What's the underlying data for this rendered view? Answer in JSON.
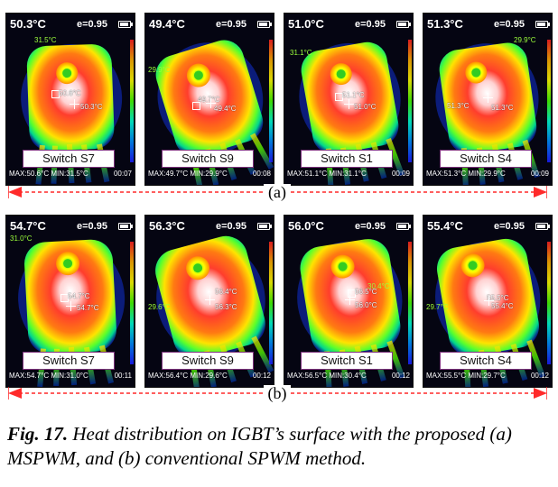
{
  "rows": [
    {
      "label": "(a)",
      "panels": [
        {
          "max_temp": "50.3°C",
          "emissivity": "e=0.95",
          "side_temp": "31.5°C",
          "marker_1": "50.6°C",
          "marker_2": "50.3°C",
          "switch": "Switch S7",
          "max": "MAX:50.6°C",
          "min": "MIN:31.5°C",
          "time": "00:07"
        },
        {
          "max_temp": "49.4°C",
          "emissivity": "e=0.95",
          "side_temp": "29.9°C",
          "marker_1": "49.7°C",
          "marker_2": "49.4°C",
          "switch": "Switch S9",
          "max": "MAX:49.7°C",
          "min": "MIN:29.9°C",
          "time": "00:08"
        },
        {
          "max_temp": "51.0°C",
          "emissivity": "e=0.95",
          "side_temp": "31.1°C",
          "marker_1": "51.1°C",
          "marker_2": "51.0°C",
          "switch": "Switch S1",
          "max": "MAX:51.1°C",
          "min": "MIN:31.1°C",
          "time": "00:09"
        },
        {
          "max_temp": "51.3°C",
          "emissivity": "e=0.95",
          "side_temp": "29.9°C",
          "marker_1": "51.3°C",
          "marker_2": "51.3°C",
          "switch": "Switch S4",
          "max": "MAX:51.3°C",
          "min": "MIN:29.9°C",
          "time": "00:09"
        }
      ]
    },
    {
      "label": "(b)",
      "panels": [
        {
          "max_temp": "54.7°C",
          "emissivity": "e=0.95",
          "side_temp": "31.0°C",
          "marker_1": "54.7°C",
          "marker_2": "54.7°C",
          "switch": "Switch S7",
          "max": "MAX:54.7°C",
          "min": "MIN:31.0°C",
          "time": "00:11"
        },
        {
          "max_temp": "56.3°C",
          "emissivity": "e=0.95",
          "side_temp": "29.6°C",
          "marker_1": "56.4°C",
          "marker_2": "56.3°C",
          "switch": "Switch S9",
          "max": "MAX:56.4°C",
          "min": "MIN:29.6°C",
          "time": "00:12"
        },
        {
          "max_temp": "56.0°C",
          "emissivity": "e=0.95",
          "side_temp": "30.4°C",
          "marker_1": "56.5°C",
          "marker_2": "56.0°C",
          "switch": "Switch S1",
          "max": "MAX:56.5°C",
          "min": "MIN:30.4°C",
          "time": "00:12"
        },
        {
          "max_temp": "55.4°C",
          "emissivity": "e=0.95",
          "side_temp": "29.7°C",
          "marker_1": "55.5°C",
          "marker_2": "55.4°C",
          "switch": "Switch S4",
          "max": "MAX:55.5°C",
          "min": "MIN:29.7°C",
          "time": "00:12"
        }
      ]
    }
  ],
  "caption": {
    "label": "Fig. 17.",
    "text": "Heat distribution on IGBT’s surface with the proposed (a) MSPWM, and (b) conventional SPWM method."
  },
  "colors": {
    "hot_red": "#ff2d1f",
    "warm_orange": "#ff8a00",
    "yellow": "#f7ff2a",
    "green": "#55ff26",
    "cyan": "#00e0c8",
    "divider_red": "#ff2a2a"
  }
}
